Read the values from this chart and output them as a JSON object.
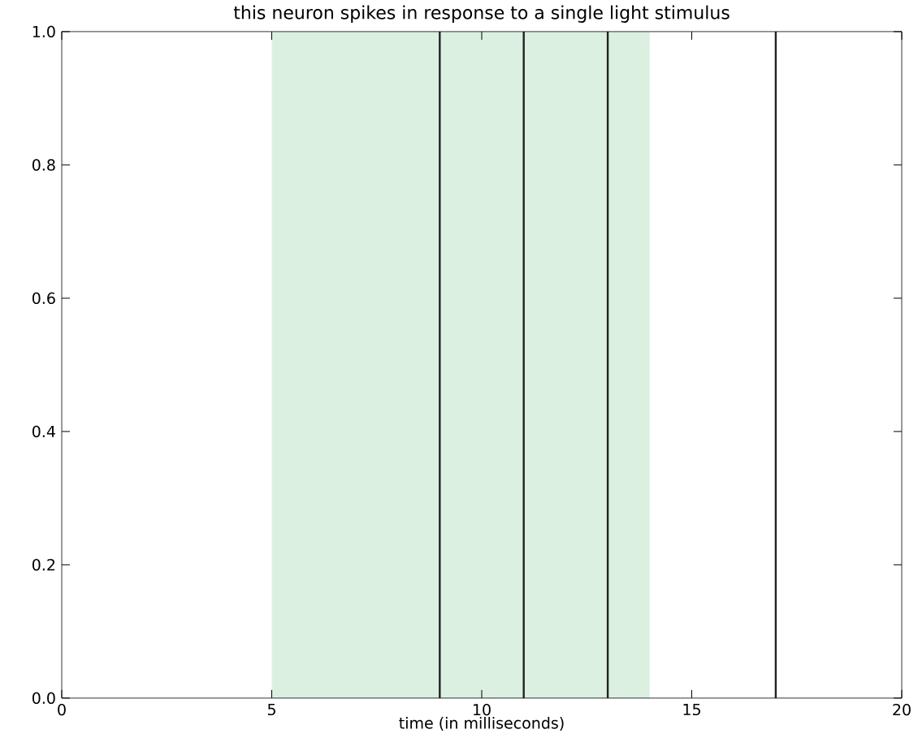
{
  "chart_data": {
    "type": "line",
    "title": "this neuron spikes in response to a single light stimulus",
    "xlabel": "time (in milliseconds)",
    "xlim": [
      0,
      20
    ],
    "ylim": [
      0,
      1
    ],
    "xticks": [
      0,
      5,
      10,
      15,
      20
    ],
    "yticks": [
      {
        "value": 0,
        "label": "0.0"
      },
      {
        "value": 0.2,
        "label": "0.2"
      },
      {
        "value": 0.4,
        "label": "0.4"
      },
      {
        "value": 0.6,
        "label": "0.6"
      },
      {
        "value": 0.8,
        "label": "0.8"
      },
      {
        "value": 1,
        "label": "1.0"
      }
    ],
    "bands": [
      {
        "axis": "x",
        "from": 5,
        "to": 14,
        "color": "#dcf0e2"
      }
    ],
    "ref_lines": [
      {
        "axis": "x",
        "value": 9,
        "color": "#222222",
        "line_style": "solid"
      },
      {
        "axis": "x",
        "value": 11,
        "color": "#222222",
        "line_style": "solid"
      },
      {
        "axis": "x",
        "value": 13,
        "color": "#222222",
        "line_style": "solid"
      },
      {
        "axis": "x",
        "value": 17,
        "color": "#222222",
        "line_style": "solid"
      }
    ]
  }
}
